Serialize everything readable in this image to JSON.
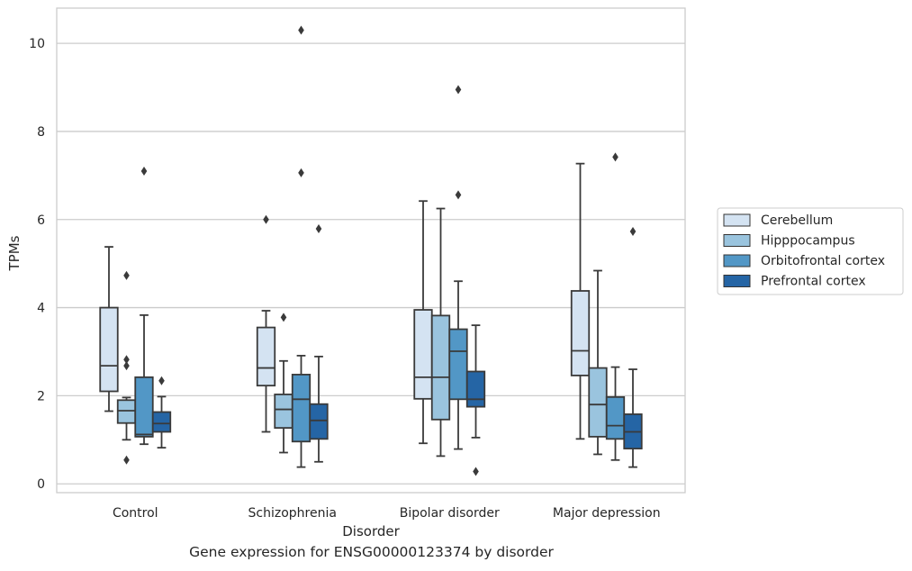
{
  "chart_data": {
    "type": "boxplot",
    "caption": "Gene expression for ENSG00000123374 by disorder",
    "xlabel": "Disorder",
    "ylabel": "TPMs",
    "ylim": [
      -0.2,
      10.8
    ],
    "yticks": [
      0,
      2,
      4,
      6,
      8,
      10
    ],
    "grid": "y",
    "legend_position": "right",
    "categories": [
      "Control",
      "Schizophrenia",
      "Bipolar disorder",
      "Major depression"
    ],
    "series": [
      {
        "name": "Cerebellum",
        "color": "#d4e3f2",
        "boxes": [
          {
            "whislo": 1.65,
            "q1": 2.1,
            "med": 2.68,
            "q3": 4.0,
            "whishi": 5.38,
            "fliers": []
          },
          {
            "whislo": 1.18,
            "q1": 2.23,
            "med": 2.63,
            "q3": 3.55,
            "whishi": 3.93,
            "fliers": [
              6.0
            ]
          },
          {
            "whislo": 0.92,
            "q1": 1.93,
            "med": 2.42,
            "q3": 3.95,
            "whishi": 6.42,
            "fliers": []
          },
          {
            "whislo": 1.02,
            "q1": 2.46,
            "med": 3.02,
            "q3": 4.38,
            "whishi": 7.27,
            "fliers": []
          }
        ]
      },
      {
        "name": "Hipppocampus",
        "color": "#9ac4de",
        "boxes": [
          {
            "whislo": 1.0,
            "q1": 1.38,
            "med": 1.66,
            "q3": 1.9,
            "whishi": 1.96,
            "fliers": [
              4.73,
              2.82,
              2.68,
              0.54
            ]
          },
          {
            "whislo": 0.71,
            "q1": 1.27,
            "med": 1.69,
            "q3": 2.03,
            "whishi": 2.79,
            "fliers": [
              3.78
            ]
          },
          {
            "whislo": 0.63,
            "q1": 1.46,
            "med": 2.42,
            "q3": 3.82,
            "whishi": 6.25,
            "fliers": []
          },
          {
            "whislo": 0.67,
            "q1": 1.07,
            "med": 1.8,
            "q3": 2.63,
            "whishi": 4.84,
            "fliers": []
          }
        ]
      },
      {
        "name": "Orbitofrontal cortex",
        "color": "#5297c6",
        "boxes": [
          {
            "whislo": 0.9,
            "q1": 1.07,
            "med": 1.12,
            "q3": 2.42,
            "whishi": 3.83,
            "fliers": [
              7.1
            ]
          },
          {
            "whislo": 0.38,
            "q1": 0.96,
            "med": 1.92,
            "q3": 2.48,
            "whishi": 2.91,
            "fliers": [
              10.3,
              7.06
            ]
          },
          {
            "whislo": 0.79,
            "q1": 1.92,
            "med": 3.01,
            "q3": 3.51,
            "whishi": 4.6,
            "fliers": [
              8.95,
              6.56
            ]
          },
          {
            "whislo": 0.54,
            "q1": 1.02,
            "med": 1.32,
            "q3": 1.97,
            "whishi": 2.65,
            "fliers": [
              7.42
            ]
          }
        ]
      },
      {
        "name": "Prefrontal cortex",
        "color": "#2565a5",
        "boxes": [
          {
            "whislo": 0.82,
            "q1": 1.18,
            "med": 1.37,
            "q3": 1.63,
            "whishi": 1.98,
            "fliers": [
              2.34
            ]
          },
          {
            "whislo": 0.5,
            "q1": 1.02,
            "med": 1.44,
            "q3": 1.81,
            "whishi": 2.89,
            "fliers": [
              5.79
            ]
          },
          {
            "whislo": 1.05,
            "q1": 1.75,
            "med": 1.92,
            "q3": 2.55,
            "whishi": 3.6,
            "fliers": [
              0.28
            ]
          },
          {
            "whislo": 0.38,
            "q1": 0.8,
            "med": 1.18,
            "q3": 1.58,
            "whishi": 2.6,
            "fliers": [
              5.73
            ]
          }
        ]
      }
    ]
  }
}
